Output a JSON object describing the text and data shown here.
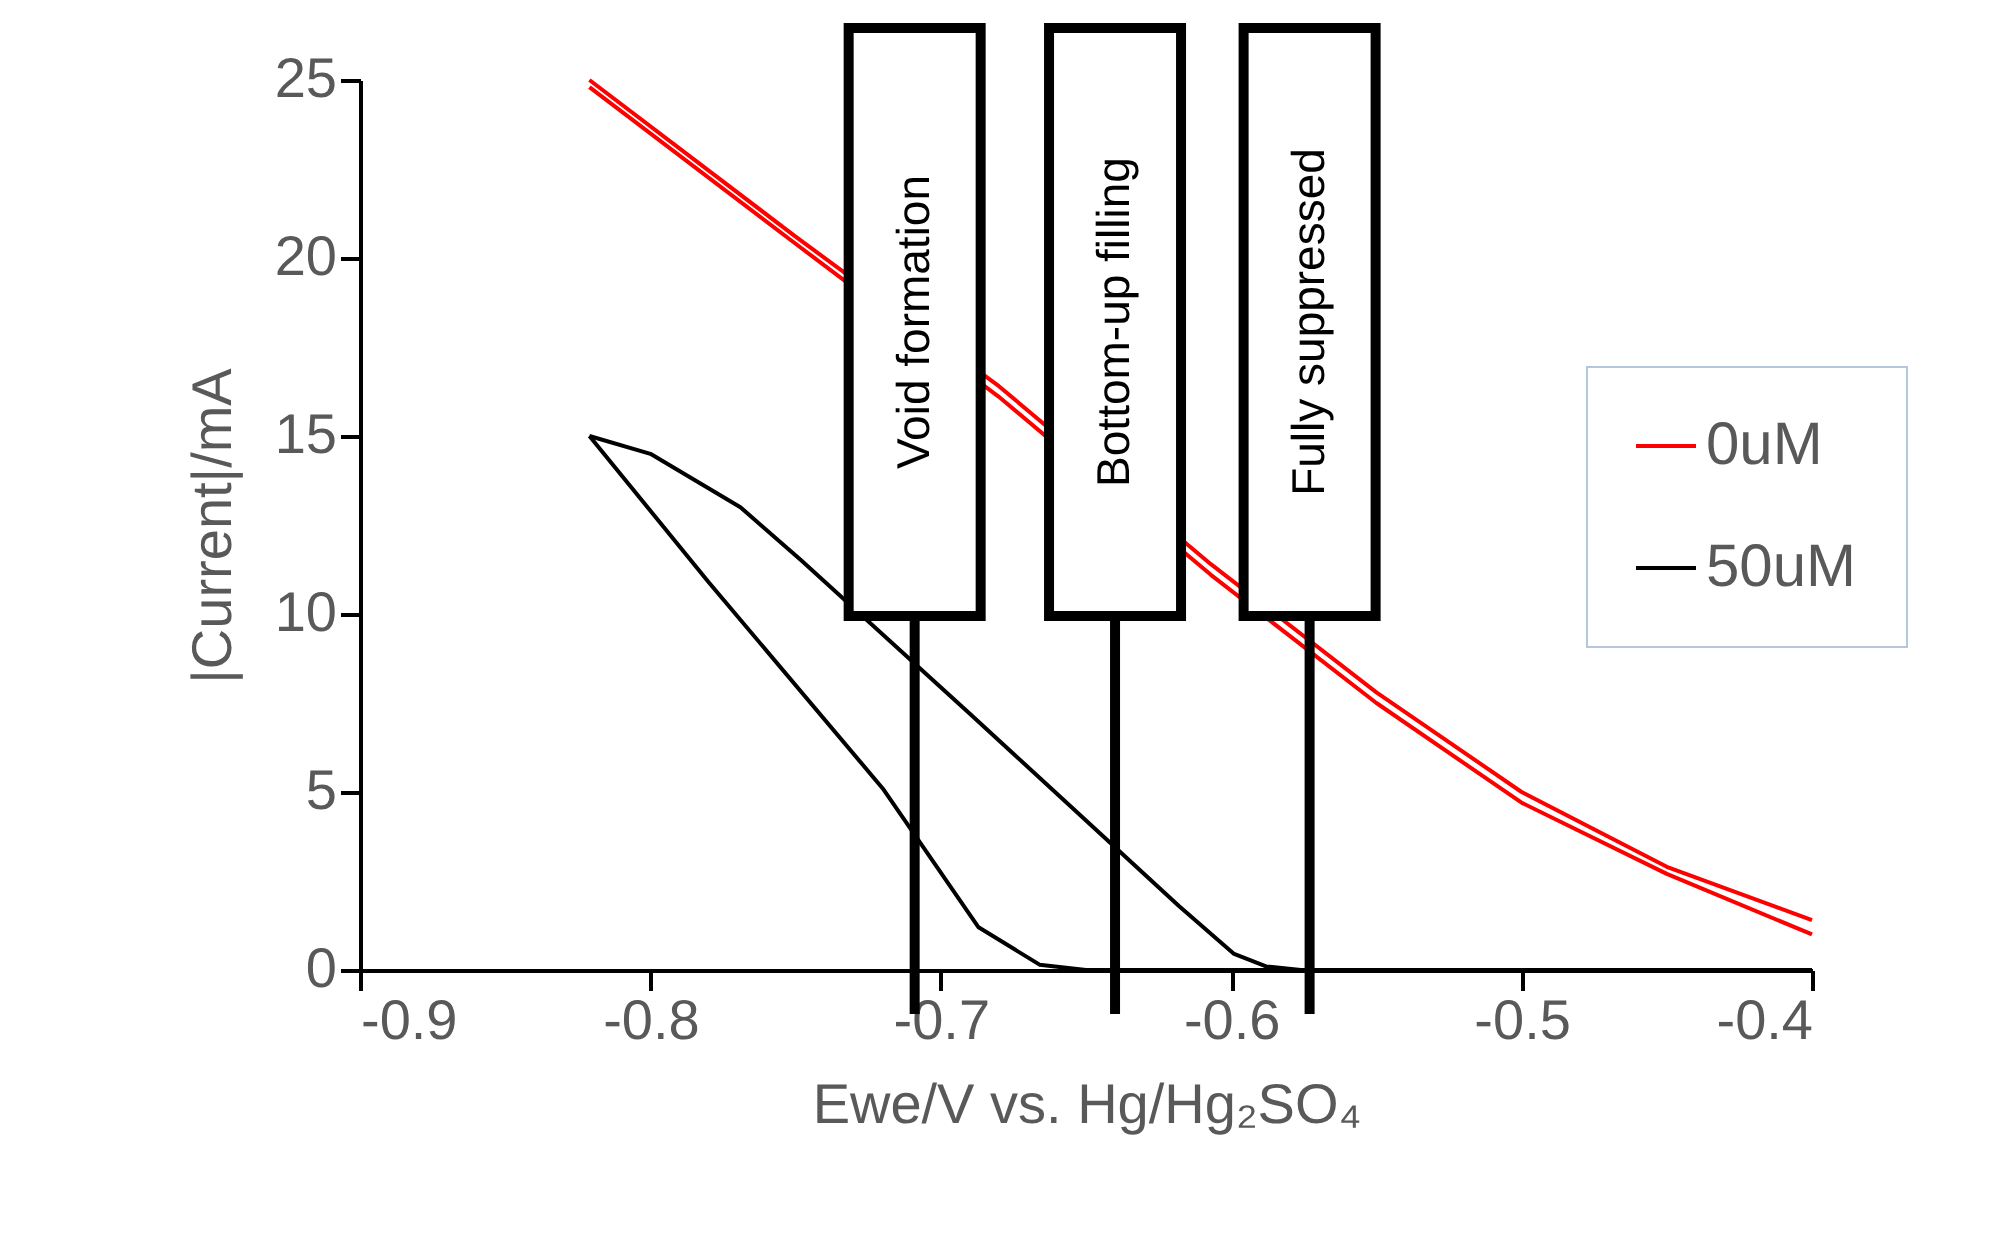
{
  "chart_data": {
    "type": "line",
    "xlabel": "Ewe/V vs. Hg/Hg₂SO₄",
    "ylabel": "|Current|/mA",
    "xlim": [
      -0.9,
      -0.4
    ],
    "xticks": [
      -0.9,
      -0.8,
      -0.7,
      -0.6,
      -0.5,
      -0.4
    ],
    "ylim": [
      0,
      25
    ],
    "yticks": [
      0,
      5,
      10,
      15,
      20,
      25
    ],
    "grid": false,
    "legend": "right",
    "marker": "none",
    "line_style": "solid",
    "series": [
      {
        "name": "0uM",
        "color": "#ff0000",
        "x": [
          -0.821,
          -0.75,
          -0.68,
          -0.607,
          -0.55,
          -0.5,
          -0.45,
          -0.4
        ],
        "values": [
          25,
          20.6,
          16.4,
          11.4,
          7.8,
          5.0,
          2.9,
          1.4
        ]
      },
      {
        "color": "#ff0000",
        "x": [
          -0.821,
          -0.75,
          -0.68,
          -0.607,
          -0.55,
          -0.5,
          -0.45,
          -0.4
        ],
        "values": [
          24.8,
          20.4,
          16.1,
          11.1,
          7.5,
          4.7,
          2.7,
          1.0
        ]
      },
      {
        "name": "50uM",
        "color": "#000000",
        "x": [
          -0.821,
          -0.8,
          -0.769,
          -0.748,
          -0.69,
          -0.65,
          -0.618,
          -0.599,
          -0.588,
          -0.576,
          -0.4
        ],
        "values": [
          15.0,
          14.5,
          13.0,
          11.5,
          7.2,
          4.2,
          1.8,
          0.45,
          0.1,
          0,
          0
        ]
      },
      {
        "color": "#000000",
        "x": [
          -0.821,
          -0.78,
          -0.72,
          -0.687,
          -0.666,
          -0.65,
          -0.576
        ],
        "values": [
          15.0,
          10.9,
          5.1,
          1.2,
          0.15,
          0,
          0
        ]
      }
    ],
    "ref_lines": [
      {
        "axis": "x",
        "value": -0.709,
        "label": "Void formation",
        "color": "#000000"
      },
      {
        "axis": "x",
        "value": -0.64,
        "label": "Bottom-up filling",
        "color": "#000000"
      },
      {
        "axis": "x",
        "value": -0.573,
        "label": "Fully suppressed",
        "color": "#000000"
      }
    ]
  }
}
